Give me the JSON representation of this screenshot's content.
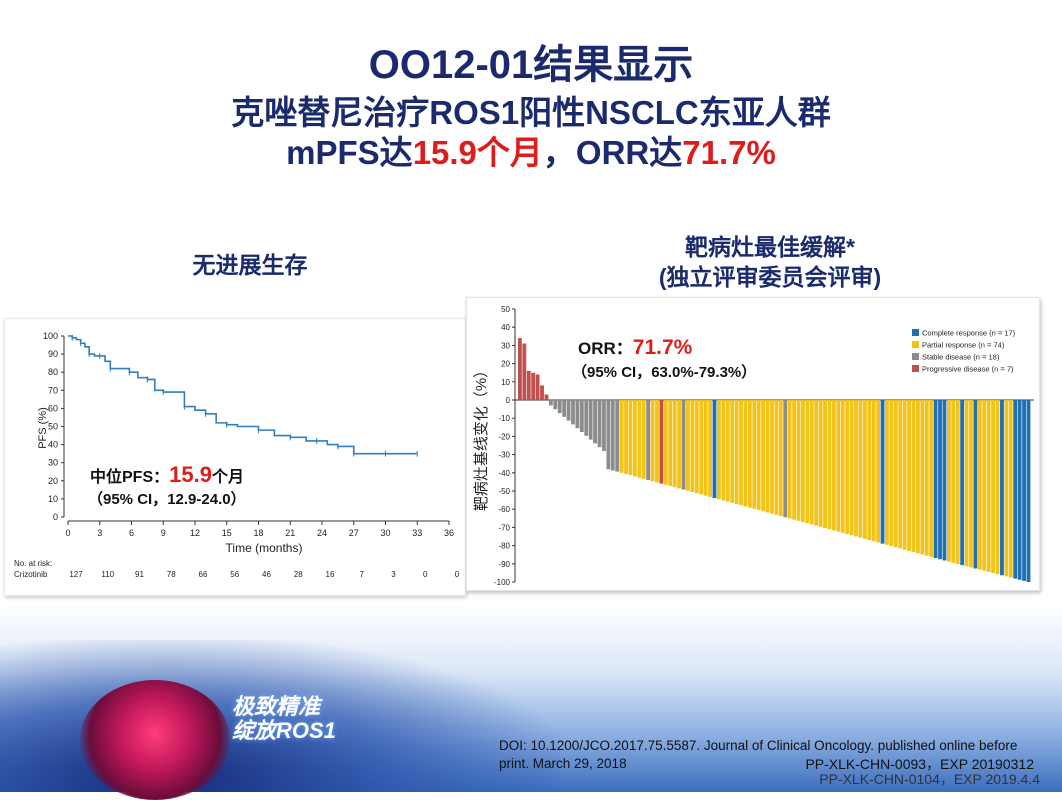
{
  "header": {
    "title": "OO12-01结果显示",
    "subtitle": "克唑替尼治疗ROS1阳性NSCLC东亚人群",
    "line3_a": "mPFS达",
    "line3_b": "15.9个月",
    "line3_c": "，ORR达",
    "line3_d": "71.7%"
  },
  "km_panel": {
    "title": "无进展生存",
    "median_label": "中位PFS：",
    "median_value": "15.9",
    "median_unit": "个月",
    "ci": "（95% CI，12.9-24.0）",
    "risk_title": "No. at risk:",
    "risk_row_label": "Crizotinib"
  },
  "wf_panel": {
    "title_line1": "靶病灶最佳缓解*",
    "title_line2": "(独立评审委员会评审)",
    "orr_label": "ORR：",
    "orr_value": "71.7%",
    "orr_ci": "（95% CI，63.0%-79.3%）"
  },
  "colors": {
    "title_blue": "#1a2a6c",
    "accent_red": "#e01b1b",
    "km_line": "#2f7fc1",
    "complete": "#1f6fb5",
    "partial": "#f2c318",
    "stable": "#8c8c8c",
    "progressive": "#c0504d"
  },
  "chart_data": [
    {
      "type": "line",
      "xlabel": "Time (months)",
      "ylabel": "PFS (%)",
      "xlim": [
        0,
        36
      ],
      "ylim": [
        0,
        100
      ],
      "x_ticks": [
        0,
        3,
        6,
        9,
        12,
        15,
        18,
        21,
        24,
        27,
        30,
        33,
        36
      ],
      "y_ticks": [
        0,
        10,
        20,
        30,
        40,
        50,
        60,
        70,
        80,
        90,
        100
      ],
      "series": [
        {
          "x": [
            0,
            0.4,
            0.8,
            1.2,
            1.6,
            2.0,
            2.5,
            3.0,
            3.5,
            4.0,
            5.0,
            5.8,
            6.6,
            7.5,
            8.2,
            9.0,
            10.0,
            11.0,
            12.0,
            13.0,
            14.0,
            15.0,
            16.0,
            18.0,
            19.5,
            21.0,
            22.5,
            23.5,
            24.5,
            25.5,
            26.0,
            27.0,
            28.0,
            30.0,
            32.0,
            33.0
          ],
          "y": [
            100,
            99,
            98,
            96,
            94,
            90,
            89,
            89,
            86,
            82,
            82,
            80,
            77,
            76,
            70,
            69,
            69,
            61,
            59,
            57,
            52,
            51,
            50,
            48,
            45,
            44,
            42,
            42,
            40,
            39,
            39,
            35,
            35,
            35,
            35,
            35
          ]
        }
      ],
      "risk_table": {
        "x": [
          0,
          3,
          6,
          9,
          12,
          15,
          18,
          21,
          24,
          27,
          30,
          33,
          36
        ],
        "crizotinib": [
          127,
          110,
          91,
          78,
          66,
          56,
          46,
          28,
          16,
          7,
          3,
          0,
          0
        ]
      }
    },
    {
      "type": "bar",
      "ylabel": "靶病灶基线变化（%）",
      "ylim": [
        -100,
        50
      ],
      "y_ticks": [
        50,
        40,
        30,
        20,
        10,
        0,
        -10,
        -20,
        -30,
        -40,
        -50,
        -60,
        -70,
        -80,
        -90,
        -100
      ],
      "legend_position": "top-right",
      "legend": [
        {
          "name": "Complete response (n = 17)",
          "color": "#1f6fb5"
        },
        {
          "name": "Partial response (n = 74)",
          "color": "#f2c318"
        },
        {
          "name": "Stable disease (n = 18)",
          "color": "#8c8c8c"
        },
        {
          "name": "Progressive disease (n = 7)",
          "color": "#c0504d"
        }
      ]
    }
  ]
}
